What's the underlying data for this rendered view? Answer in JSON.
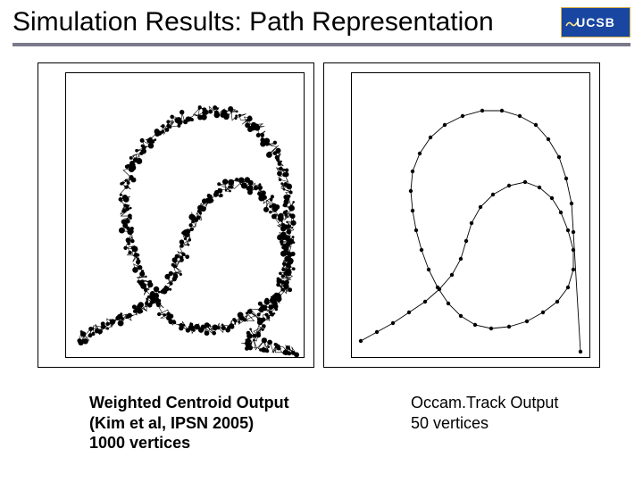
{
  "title": "Simulation Results: Path Representation",
  "logo_text": "UCSB",
  "logo_bg": "#1846a0",
  "logo_border": "#d4b24a",
  "logo_fg": "#ffffff",
  "underline_color": "#7a7a8a",
  "panel_border": "#000000",
  "background": "#ffffff",
  "left_caption_l1": "Weighted Centroid Output",
  "left_caption_l2": "(Kim et al, IPSN 2005)",
  "left_caption_l3": "1000 vertices",
  "right_caption_l1": "Occam.Track Output",
  "right_caption_l2": "50 vertices",
  "left_panel": {
    "type": "scatter-path",
    "stroke": "#000000",
    "marker_color": "#000000",
    "marker_size_min": 1.2,
    "marker_size_max": 3.5,
    "xlim": [
      0,
      268
    ],
    "ylim": [
      0,
      320
    ],
    "base_path": [
      [
        12,
        298
      ],
      [
        30,
        290
      ],
      [
        48,
        282
      ],
      [
        66,
        274
      ],
      [
        84,
        264
      ],
      [
        100,
        252
      ],
      [
        114,
        238
      ],
      [
        124,
        222
      ],
      [
        130,
        204
      ],
      [
        134,
        186
      ],
      [
        140,
        168
      ],
      [
        150,
        152
      ],
      [
        164,
        138
      ],
      [
        180,
        128
      ],
      [
        196,
        122
      ],
      [
        212,
        128
      ],
      [
        224,
        140
      ],
      [
        234,
        156
      ],
      [
        242,
        174
      ],
      [
        248,
        194
      ],
      [
        250,
        214
      ],
      [
        248,
        232
      ],
      [
        240,
        248
      ],
      [
        226,
        260
      ],
      [
        210,
        270
      ],
      [
        192,
        278
      ],
      [
        174,
        284
      ],
      [
        156,
        288
      ],
      [
        138,
        286
      ],
      [
        122,
        278
      ],
      [
        108,
        266
      ],
      [
        96,
        250
      ],
      [
        86,
        232
      ],
      [
        78,
        212
      ],
      [
        72,
        192
      ],
      [
        68,
        172
      ],
      [
        66,
        152
      ],
      [
        66,
        132
      ],
      [
        70,
        112
      ],
      [
        78,
        94
      ],
      [
        90,
        78
      ],
      [
        106,
        64
      ],
      [
        124,
        54
      ],
      [
        144,
        46
      ],
      [
        164,
        42
      ],
      [
        184,
        44
      ],
      [
        202,
        52
      ],
      [
        218,
        64
      ],
      [
        230,
        80
      ],
      [
        238,
        98
      ],
      [
        244,
        118
      ],
      [
        248,
        140
      ],
      [
        250,
        162
      ],
      [
        250,
        184
      ],
      [
        248,
        206
      ],
      [
        244,
        228
      ],
      [
        238,
        248
      ],
      [
        230,
        266
      ],
      [
        220,
        282
      ],
      [
        210,
        294
      ],
      [
        200,
        302
      ],
      [
        256,
        312
      ]
    ],
    "noise_amplitude": 6,
    "point_count": 1000
  },
  "right_panel": {
    "type": "polyline-sparse",
    "stroke": "#000000",
    "marker_color": "#000000",
    "marker_size": 2.2,
    "xlim": [
      0,
      268
    ],
    "ylim": [
      0,
      320
    ],
    "points": [
      [
        10,
        300
      ],
      [
        28,
        290
      ],
      [
        46,
        280
      ],
      [
        64,
        268
      ],
      [
        82,
        256
      ],
      [
        98,
        242
      ],
      [
        112,
        226
      ],
      [
        122,
        208
      ],
      [
        128,
        188
      ],
      [
        134,
        168
      ],
      [
        144,
        150
      ],
      [
        158,
        136
      ],
      [
        176,
        126
      ],
      [
        194,
        122
      ],
      [
        210,
        128
      ],
      [
        224,
        140
      ],
      [
        234,
        156
      ],
      [
        242,
        176
      ],
      [
        248,
        198
      ],
      [
        248,
        220
      ],
      [
        242,
        240
      ],
      [
        230,
        256
      ],
      [
        214,
        268
      ],
      [
        196,
        278
      ],
      [
        176,
        284
      ],
      [
        156,
        286
      ],
      [
        138,
        282
      ],
      [
        122,
        272
      ],
      [
        108,
        258
      ],
      [
        96,
        240
      ],
      [
        86,
        220
      ],
      [
        78,
        198
      ],
      [
        72,
        176
      ],
      [
        68,
        154
      ],
      [
        66,
        132
      ],
      [
        68,
        110
      ],
      [
        76,
        90
      ],
      [
        88,
        72
      ],
      [
        104,
        58
      ],
      [
        124,
        48
      ],
      [
        146,
        42
      ],
      [
        168,
        42
      ],
      [
        188,
        48
      ],
      [
        206,
        58
      ],
      [
        220,
        74
      ],
      [
        232,
        94
      ],
      [
        240,
        118
      ],
      [
        246,
        146
      ],
      [
        248,
        178
      ],
      [
        256,
        312
      ]
    ]
  }
}
